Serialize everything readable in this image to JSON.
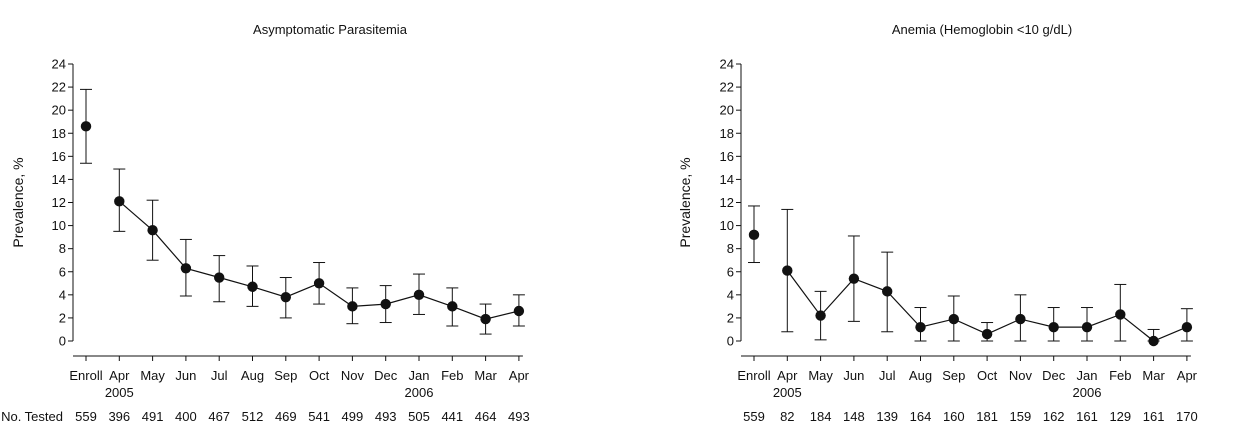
{
  "figure": {
    "n_row_label": "No. Tested"
  },
  "chart_data": [
    {
      "type": "line",
      "title": "Asymptomatic Parasitemia",
      "ylabel": "Prevalence, %",
      "xlabel": "",
      "ylim": [
        0,
        24
      ],
      "yticks": [
        0,
        2,
        4,
        6,
        8,
        10,
        12,
        14,
        16,
        18,
        20,
        22,
        24
      ],
      "categories": [
        "Enroll",
        "Apr",
        "May",
        "Jun",
        "Jul",
        "Aug",
        "Sep",
        "Oct",
        "Nov",
        "Dec",
        "Jan",
        "Feb",
        "Mar",
        "Apr"
      ],
      "year_labels": [
        {
          "category_index": 1,
          "label": "2005"
        },
        {
          "category_index": 10,
          "label": "2006"
        }
      ],
      "values": [
        18.6,
        12.1,
        9.6,
        6.3,
        5.5,
        4.7,
        3.8,
        5.0,
        3.0,
        3.2,
        4.0,
        3.0,
        1.9,
        2.6
      ],
      "ci_lower": [
        15.4,
        9.5,
        7.0,
        3.9,
        3.4,
        3.0,
        2.0,
        3.2,
        1.5,
        1.6,
        2.3,
        1.3,
        0.6,
        1.3
      ],
      "ci_upper": [
        21.8,
        14.9,
        12.2,
        8.8,
        7.4,
        6.5,
        5.5,
        6.8,
        4.6,
        4.8,
        5.8,
        4.6,
        3.2,
        4.0
      ],
      "line_connects_from_index": 1,
      "n_tested": [
        "559",
        "396",
        "491",
        "400",
        "467",
        "512",
        "469",
        "541",
        "499",
        "493",
        "505",
        "441",
        "464",
        "493"
      ]
    },
    {
      "type": "line",
      "title": "Anemia (Hemoglobin <10 g/dL)",
      "ylabel": "Prevalence, %",
      "xlabel": "",
      "ylim": [
        0,
        24
      ],
      "yticks": [
        0,
        2,
        4,
        6,
        8,
        10,
        12,
        14,
        16,
        18,
        20,
        22,
        24
      ],
      "categories": [
        "Enroll",
        "Apr",
        "May",
        "Jun",
        "Jul",
        "Aug",
        "Sep",
        "Oct",
        "Nov",
        "Dec",
        "Jan",
        "Feb",
        "Mar",
        "Apr"
      ],
      "year_labels": [
        {
          "category_index": 1,
          "label": "2005"
        },
        {
          "category_index": 10,
          "label": "2006"
        }
      ],
      "values": [
        9.2,
        6.1,
        2.2,
        5.4,
        4.3,
        1.2,
        1.9,
        0.6,
        1.9,
        1.2,
        1.2,
        2.3,
        0.0,
        1.2
      ],
      "ci_lower": [
        6.8,
        0.8,
        0.1,
        1.7,
        0.8,
        0.0,
        0.0,
        0.0,
        0.0,
        0.0,
        0.0,
        0.0,
        0.0,
        0.0
      ],
      "ci_upper": [
        11.7,
        11.4,
        4.3,
        9.1,
        7.7,
        2.9,
        3.9,
        1.6,
        4.0,
        2.9,
        2.9,
        4.9,
        1.0,
        2.8
      ],
      "line_connects_from_index": 1,
      "n_tested": [
        "559",
        "82",
        "184",
        "148",
        "139",
        "164",
        "160",
        "181",
        "159",
        "162",
        "161",
        "129",
        "161",
        "170"
      ]
    }
  ]
}
